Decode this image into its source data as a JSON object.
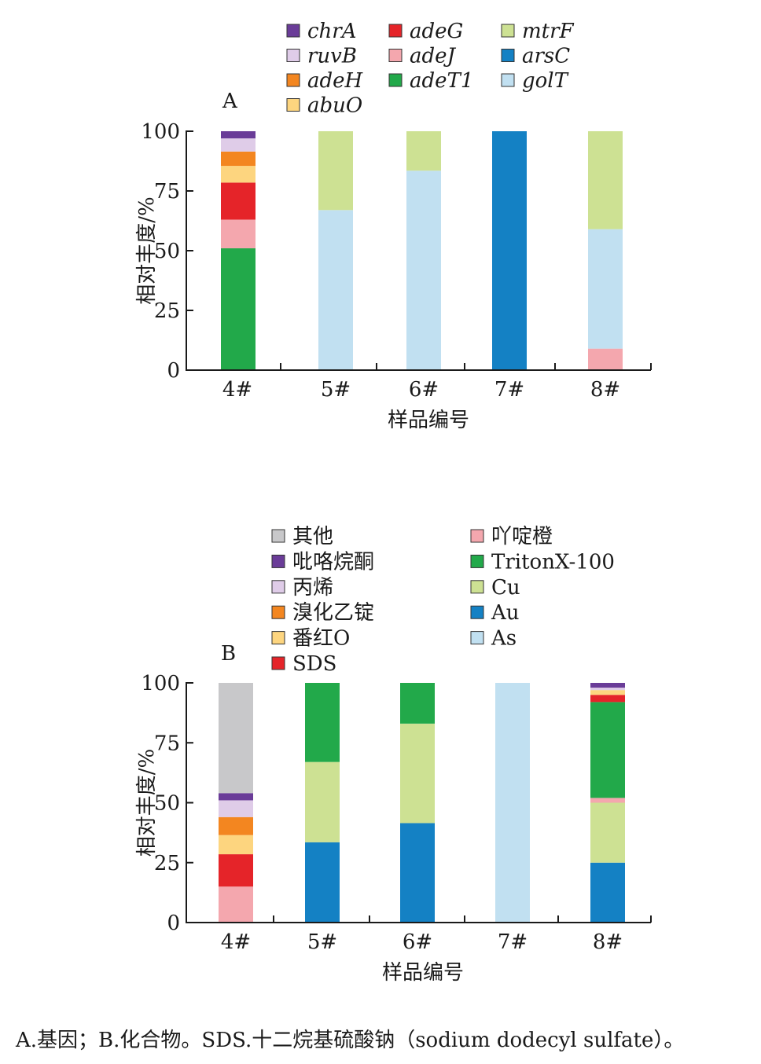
{
  "chart_data": [
    {
      "type": "bar",
      "panel_label": "A",
      "categories": [
        "4#",
        "5#",
        "6#",
        "7#",
        "8#"
      ],
      "xlabel": "样品编号",
      "ylabel": "相对丰度/%",
      "ylim": [
        0,
        100
      ],
      "yticks": [
        "0",
        "25",
        "50",
        "75",
        "100"
      ],
      "legend_italic": true,
      "stacked": true,
      "series": [
        {
          "name": "adeT1",
          "color": "#22a94a",
          "values": [
            51,
            0,
            0,
            0,
            0
          ]
        },
        {
          "name": "adeJ",
          "color": "#f4a7ae",
          "values": [
            12,
            0,
            0,
            0,
            9
          ]
        },
        {
          "name": "adeG",
          "color": "#e52429",
          "values": [
            15.5,
            0,
            0,
            0,
            0
          ]
        },
        {
          "name": "abuO",
          "color": "#fdd57f",
          "values": [
            7,
            0,
            0,
            0,
            0
          ]
        },
        {
          "name": "adeH",
          "color": "#f38620",
          "values": [
            6,
            0,
            0,
            0,
            0
          ]
        },
        {
          "name": "ruvB",
          "color": "#dfcce8",
          "values": [
            5.5,
            0,
            0,
            0,
            0
          ]
        },
        {
          "name": "chrA",
          "color": "#6a3c98",
          "values": [
            3,
            0,
            0,
            0,
            0
          ]
        },
        {
          "name": "golT",
          "color": "#c1e0f1",
          "values": [
            0,
            67,
            83.5,
            0,
            50
          ]
        },
        {
          "name": "arsC",
          "color": "#1481c4",
          "values": [
            0,
            0,
            0,
            100,
            0
          ]
        },
        {
          "name": "mtrF",
          "color": "#cde193",
          "values": [
            0,
            33,
            16.5,
            0,
            41
          ]
        }
      ],
      "legend_columns": [
        [
          "chrA",
          "ruvB",
          "adeH",
          "abuO"
        ],
        [
          "adeG",
          "adeJ",
          "adeT1"
        ],
        [
          "mtrF",
          "arsC",
          "golT"
        ]
      ]
    },
    {
      "type": "bar",
      "panel_label": "B",
      "categories": [
        "4#",
        "5#",
        "6#",
        "7#",
        "8#"
      ],
      "xlabel": "样品编号",
      "ylabel": "相对丰度/%",
      "ylim": [
        0,
        100
      ],
      "yticks": [
        "0",
        "25",
        "50",
        "75",
        "100"
      ],
      "legend_italic": false,
      "stacked": true,
      "series": [
        {
          "name": "As",
          "color": "#c1e0f1",
          "values": [
            0,
            0,
            0,
            100,
            0
          ]
        },
        {
          "name": "Au",
          "color": "#1481c4",
          "values": [
            0,
            33.5,
            41.5,
            0,
            25
          ]
        },
        {
          "name": "Cu",
          "color": "#cde193",
          "values": [
            0,
            33.5,
            41.5,
            0,
            25
          ]
        },
        {
          "name": "吖啶橙",
          "color": "#f4a7ae",
          "values": [
            15,
            0,
            0,
            0,
            2
          ]
        },
        {
          "name": "TritonX-100",
          "color": "#22a94a",
          "values": [
            0,
            33,
            17,
            0,
            40
          ]
        },
        {
          "name": "SDS",
          "color": "#e52429",
          "values": [
            13.5,
            0,
            0,
            0,
            3
          ]
        },
        {
          "name": "番红O",
          "color": "#fdd57f",
          "values": [
            8,
            0,
            0,
            0,
            2
          ]
        },
        {
          "name": "溴化乙锭",
          "color": "#f38620",
          "values": [
            7.5,
            0,
            0,
            0,
            0
          ]
        },
        {
          "name": "丙烯",
          "color": "#dfcce8",
          "values": [
            7,
            0,
            0,
            0,
            1
          ]
        },
        {
          "name": "吡咯烷酮",
          "color": "#6a3c98",
          "values": [
            3,
            0,
            0,
            0,
            2
          ]
        },
        {
          "name": "其他",
          "color": "#c8c8ca",
          "values": [
            46,
            0,
            0,
            0,
            0
          ]
        }
      ],
      "legend_columns": [
        [
          "其他",
          "吡咯烷酮",
          "丙烯",
          "溴化乙锭",
          "番红O",
          "SDS"
        ],
        [
          "吖啶橙",
          "TritonX-100",
          "Cu",
          "Au",
          "As"
        ]
      ]
    }
  ],
  "caption": "A.基因；B.化合物。SDS.十二烷基硫酸钠（sodium dodecyl sulfate）。"
}
